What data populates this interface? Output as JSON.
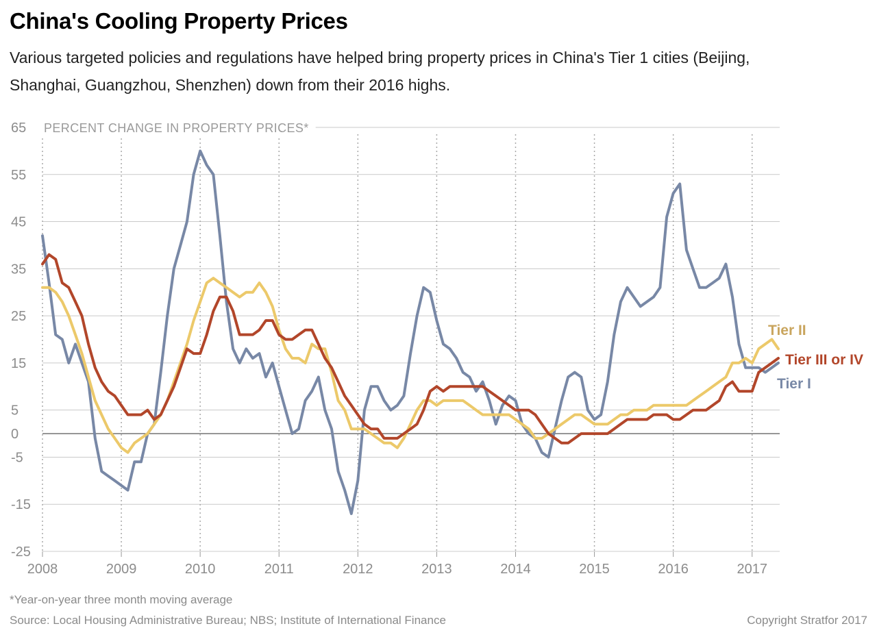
{
  "title": "China's Cooling Property Prices",
  "subtitle": "Various targeted policies and regulations have helped bring property prices in China's Tier 1 cities (Beijing, Shanghai, Guangzhou, Shenzhen) down from their 2016 highs.",
  "footnote": "*Year-on-year three month moving average",
  "source": "Source: Local Housing Administrative Bureau; NBS; Institute of International Finance",
  "copyright": "Copyright Stratfor 2017",
  "chart_data": {
    "type": "line",
    "ylabel": "PERCENT CHANGE IN PROPERTY PRICES*",
    "xlim": [
      2008.0,
      2017.35
    ],
    "ylim": [
      -25,
      65
    ],
    "yticks": [
      65,
      55,
      45,
      35,
      25,
      15,
      5,
      0,
      -5,
      -15,
      -25
    ],
    "xticks": [
      "2008",
      "2009",
      "2010",
      "2011",
      "2012",
      "2013",
      "2014",
      "2015",
      "2016",
      "2017"
    ],
    "grid": true,
    "legend": "inline labels at line ends",
    "series": [
      {
        "name": "Tier I",
        "color": "#7888a6",
        "x": [
          2008.0,
          2008.083,
          2008.167,
          2008.25,
          2008.333,
          2008.417,
          2008.5,
          2008.583,
          2008.667,
          2008.75,
          2008.833,
          2008.917,
          2009.0,
          2009.083,
          2009.167,
          2009.25,
          2009.333,
          2009.417,
          2009.5,
          2009.583,
          2009.667,
          2009.75,
          2009.833,
          2009.917,
          2010.0,
          2010.083,
          2010.167,
          2010.25,
          2010.333,
          2010.417,
          2010.5,
          2010.583,
          2010.667,
          2010.75,
          2010.833,
          2010.917,
          2011.0,
          2011.083,
          2011.167,
          2011.25,
          2011.333,
          2011.417,
          2011.5,
          2011.583,
          2011.667,
          2011.75,
          2011.833,
          2011.917,
          2012.0,
          2012.083,
          2012.167,
          2012.25,
          2012.333,
          2012.417,
          2012.5,
          2012.583,
          2012.667,
          2012.75,
          2012.833,
          2012.917,
          2013.0,
          2013.083,
          2013.167,
          2013.25,
          2013.333,
          2013.417,
          2013.5,
          2013.583,
          2013.667,
          2013.75,
          2013.833,
          2013.917,
          2014.0,
          2014.083,
          2014.167,
          2014.25,
          2014.333,
          2014.417,
          2014.5,
          2014.583,
          2014.667,
          2014.75,
          2014.833,
          2014.917,
          2015.0,
          2015.083,
          2015.167,
          2015.25,
          2015.333,
          2015.417,
          2015.5,
          2015.583,
          2015.667,
          2015.75,
          2015.833,
          2015.917,
          2016.0,
          2016.083,
          2016.167,
          2016.25,
          2016.333,
          2016.417,
          2016.5,
          2016.583,
          2016.667,
          2016.75,
          2016.833,
          2016.917,
          2017.0,
          2017.083,
          2017.167,
          2017.25,
          2017.333
        ],
        "values": [
          42,
          32,
          21,
          20,
          15,
          19,
          15,
          11,
          -1,
          -8,
          -9,
          -10,
          -11,
          -12,
          -6,
          -6,
          0,
          2,
          13,
          25,
          35,
          40,
          45,
          55,
          60,
          57,
          55,
          42,
          28,
          18,
          15,
          18,
          16,
          17,
          12,
          15,
          10,
          5,
          0,
          1,
          7,
          9,
          12,
          5,
          1,
          -8,
          -12,
          -17,
          -10,
          5,
          10,
          10,
          7,
          5,
          6,
          8,
          17,
          25,
          31,
          30,
          24,
          19,
          18,
          16,
          13,
          12,
          9,
          11,
          7,
          2,
          6,
          8,
          7,
          2,
          0,
          -1,
          -4,
          -5,
          1,
          7,
          12,
          13,
          12,
          5,
          3,
          4,
          11,
          21,
          28,
          31,
          29,
          27,
          28,
          29,
          31,
          46,
          51,
          53,
          39,
          35,
          31,
          31,
          32,
          33,
          36,
          29,
          19,
          14,
          14,
          14,
          13,
          14,
          15
        ]
      },
      {
        "name": "Tier II",
        "color": "#ecc96a",
        "x": [
          2008.0,
          2008.083,
          2008.167,
          2008.25,
          2008.333,
          2008.417,
          2008.5,
          2008.583,
          2008.667,
          2008.75,
          2008.833,
          2008.917,
          2009.0,
          2009.083,
          2009.167,
          2009.25,
          2009.333,
          2009.417,
          2009.5,
          2009.583,
          2009.667,
          2009.75,
          2009.833,
          2009.917,
          2010.0,
          2010.083,
          2010.167,
          2010.25,
          2010.333,
          2010.417,
          2010.5,
          2010.583,
          2010.667,
          2010.75,
          2010.833,
          2010.917,
          2011.0,
          2011.083,
          2011.167,
          2011.25,
          2011.333,
          2011.417,
          2011.5,
          2011.583,
          2011.667,
          2011.75,
          2011.833,
          2011.917,
          2012.0,
          2012.083,
          2012.167,
          2012.25,
          2012.333,
          2012.417,
          2012.5,
          2012.583,
          2012.667,
          2012.75,
          2012.833,
          2012.917,
          2013.0,
          2013.083,
          2013.167,
          2013.25,
          2013.333,
          2013.417,
          2013.5,
          2013.583,
          2013.667,
          2013.75,
          2013.833,
          2013.917,
          2014.0,
          2014.083,
          2014.167,
          2014.25,
          2014.333,
          2014.417,
          2014.5,
          2014.583,
          2014.667,
          2014.75,
          2014.833,
          2014.917,
          2015.0,
          2015.083,
          2015.167,
          2015.25,
          2015.333,
          2015.417,
          2015.5,
          2015.583,
          2015.667,
          2015.75,
          2015.833,
          2015.917,
          2016.0,
          2016.083,
          2016.167,
          2016.25,
          2016.333,
          2016.417,
          2016.5,
          2016.583,
          2016.667,
          2016.75,
          2016.833,
          2016.917,
          2017.0,
          2017.083,
          2017.167,
          2017.25,
          2017.333
        ],
        "values": [
          31,
          31,
          30,
          28,
          25,
          21,
          17,
          12,
          7,
          4,
          1,
          -1,
          -3,
          -4,
          -2,
          -1,
          0,
          2,
          4,
          7,
          11,
          15,
          19,
          24,
          28,
          32,
          33,
          32,
          31,
          30,
          29,
          30,
          30,
          32,
          30,
          27,
          22,
          18,
          16,
          16,
          15,
          19,
          18,
          18,
          13,
          7,
          5,
          1,
          1,
          1,
          0,
          -1,
          -2,
          -2,
          -3,
          -1,
          2,
          5,
          7,
          7,
          6,
          7,
          7,
          7,
          7,
          6,
          5,
          4,
          4,
          4,
          4,
          4,
          3,
          2,
          1,
          -1,
          -1,
          0,
          1,
          2,
          3,
          4,
          4,
          3,
          2,
          2,
          2,
          3,
          4,
          4,
          5,
          5,
          5,
          6,
          6,
          6,
          6,
          6,
          6,
          7,
          8,
          9,
          10,
          11,
          12,
          15,
          15,
          16,
          15,
          18,
          19,
          20,
          18
        ]
      },
      {
        "name": "Tier III or IV",
        "color": "#b2462a",
        "x": [
          2008.0,
          2008.083,
          2008.167,
          2008.25,
          2008.333,
          2008.417,
          2008.5,
          2008.583,
          2008.667,
          2008.75,
          2008.833,
          2008.917,
          2009.0,
          2009.083,
          2009.167,
          2009.25,
          2009.333,
          2009.417,
          2009.5,
          2009.583,
          2009.667,
          2009.75,
          2009.833,
          2009.917,
          2010.0,
          2010.083,
          2010.167,
          2010.25,
          2010.333,
          2010.417,
          2010.5,
          2010.583,
          2010.667,
          2010.75,
          2010.833,
          2010.917,
          2011.0,
          2011.083,
          2011.167,
          2011.25,
          2011.333,
          2011.417,
          2011.5,
          2011.583,
          2011.667,
          2011.75,
          2011.833,
          2011.917,
          2012.0,
          2012.083,
          2012.167,
          2012.25,
          2012.333,
          2012.417,
          2012.5,
          2012.583,
          2012.667,
          2012.75,
          2012.833,
          2012.917,
          2013.0,
          2013.083,
          2013.167,
          2013.25,
          2013.333,
          2013.417,
          2013.5,
          2013.583,
          2013.667,
          2013.75,
          2013.833,
          2013.917,
          2014.0,
          2014.083,
          2014.167,
          2014.25,
          2014.333,
          2014.417,
          2014.5,
          2014.583,
          2014.667,
          2014.75,
          2014.833,
          2014.917,
          2015.0,
          2015.083,
          2015.167,
          2015.25,
          2015.333,
          2015.417,
          2015.5,
          2015.583,
          2015.667,
          2015.75,
          2015.833,
          2015.917,
          2016.0,
          2016.083,
          2016.167,
          2016.25,
          2016.333,
          2016.417,
          2016.5,
          2016.583,
          2016.667,
          2016.75,
          2016.833,
          2016.917,
          2017.0,
          2017.083,
          2017.167,
          2017.25,
          2017.333
        ],
        "values": [
          36,
          38,
          37,
          32,
          31,
          28,
          25,
          19,
          14,
          11,
          9,
          8,
          6,
          4,
          4,
          4,
          5,
          3,
          4,
          7,
          10,
          14,
          18,
          17,
          17,
          21,
          26,
          29,
          29,
          26,
          21,
          21,
          21,
          22,
          24,
          24,
          21,
          20,
          20,
          21,
          22,
          22,
          19,
          16,
          14,
          11,
          8,
          6,
          4,
          2,
          1,
          1,
          -1,
          -1,
          -1,
          0,
          1,
          2,
          5,
          9,
          10,
          9,
          10,
          10,
          10,
          10,
          10,
          10,
          9,
          8,
          7,
          6,
          5,
          5,
          5,
          4,
          2,
          0,
          -1,
          -2,
          -2,
          -1,
          0,
          0,
          0,
          0,
          0,
          1,
          2,
          3,
          3,
          3,
          3,
          4,
          4,
          4,
          3,
          3,
          4,
          5,
          5,
          5,
          6,
          7,
          10,
          11,
          9,
          9,
          9,
          13,
          14,
          15,
          16
        ]
      }
    ]
  }
}
